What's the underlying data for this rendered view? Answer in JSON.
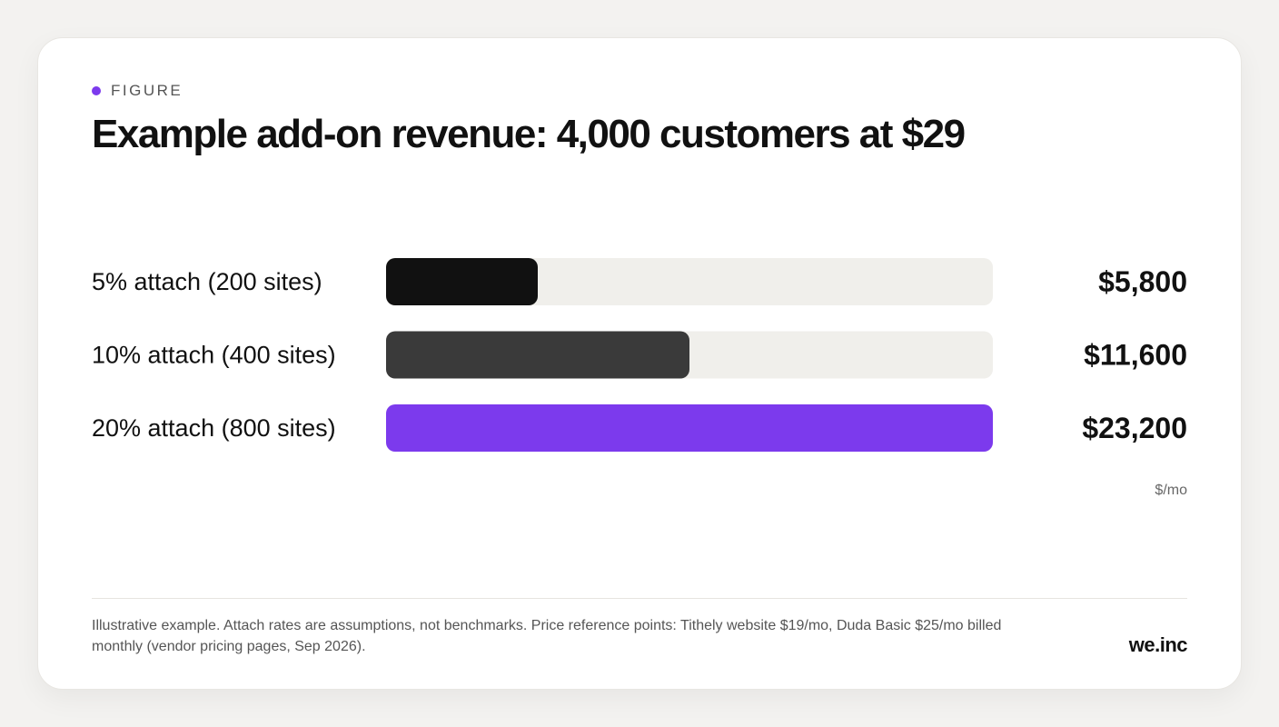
{
  "eyebrow": {
    "label": "FIGURE",
    "dot_color": "#7c3aed"
  },
  "title": "Example add-on revenue: 4,000 customers at $29",
  "chart_data": {
    "type": "bar",
    "orientation": "horizontal",
    "categories": [
      "5% attach (200 sites)",
      "10% attach (400 sites)",
      "20% attach (800 sites)"
    ],
    "values": [
      5800,
      11600,
      23200
    ],
    "value_labels": [
      "$5,800",
      "$11,600",
      "$23,200"
    ],
    "unit": "$/mo",
    "xlim": [
      0,
      23200
    ],
    "bar_colors": [
      "#111111",
      "#3a3a3a",
      "#7c3aed"
    ],
    "track_color": "#f0efeb",
    "title": "Example add-on revenue: 4,000 customers at $29"
  },
  "footer": {
    "note": "Illustrative example. Attach rates are assumptions, not benchmarks. Price reference points: Tithely website $19/mo, Duda Basic $25/mo billed monthly (vendor pricing pages, Sep 2026).",
    "logo": "we.inc"
  }
}
